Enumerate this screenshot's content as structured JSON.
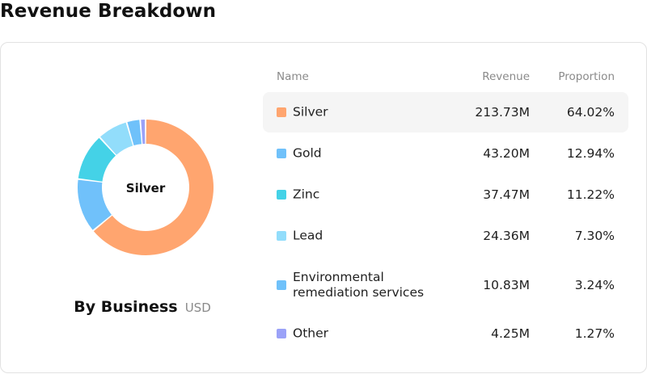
{
  "page": {
    "title": "Revenue Breakdown"
  },
  "chart": {
    "center_label": "Silver",
    "caption_title": "By Business",
    "caption_unit": "USD"
  },
  "table": {
    "headers": {
      "name": "Name",
      "revenue": "Revenue",
      "proportion": "Proportion"
    },
    "active_index": 0,
    "rows": [
      {
        "name": "Silver",
        "revenue": "213.73M",
        "proportion": "64.02%",
        "color": "#FFA56F"
      },
      {
        "name": "Gold",
        "revenue": "43.20M",
        "proportion": "12.94%",
        "color": "#70C1FA"
      },
      {
        "name": "Zinc",
        "revenue": "37.47M",
        "proportion": "11.22%",
        "color": "#44D2E7"
      },
      {
        "name": "Lead",
        "revenue": "24.36M",
        "proportion": "7.30%",
        "color": "#92DDFB"
      },
      {
        "name": "Environmental remediation services",
        "revenue": "10.83M",
        "proportion": "3.24%",
        "color": "#6FC1FA"
      },
      {
        "name": "Other",
        "revenue": "4.25M",
        "proportion": "1.27%",
        "color": "#9BA2F8"
      }
    ]
  },
  "chart_data": {
    "type": "pie",
    "categories": [
      "Silver",
      "Gold",
      "Zinc",
      "Lead",
      "Environmental remediation services",
      "Other"
    ],
    "values": [
      213.73,
      43.2,
      37.47,
      24.36,
      10.83,
      4.25
    ],
    "percent": [
      64.02,
      12.94,
      11.22,
      7.3,
      3.24,
      1.27
    ],
    "colors": [
      "#FFA56F",
      "#70C1FA",
      "#44D2E7",
      "#92DDFB",
      "#6FC1FA",
      "#9BA2F8"
    ],
    "title": "By Business",
    "unit": "USD",
    "donut": true
  }
}
